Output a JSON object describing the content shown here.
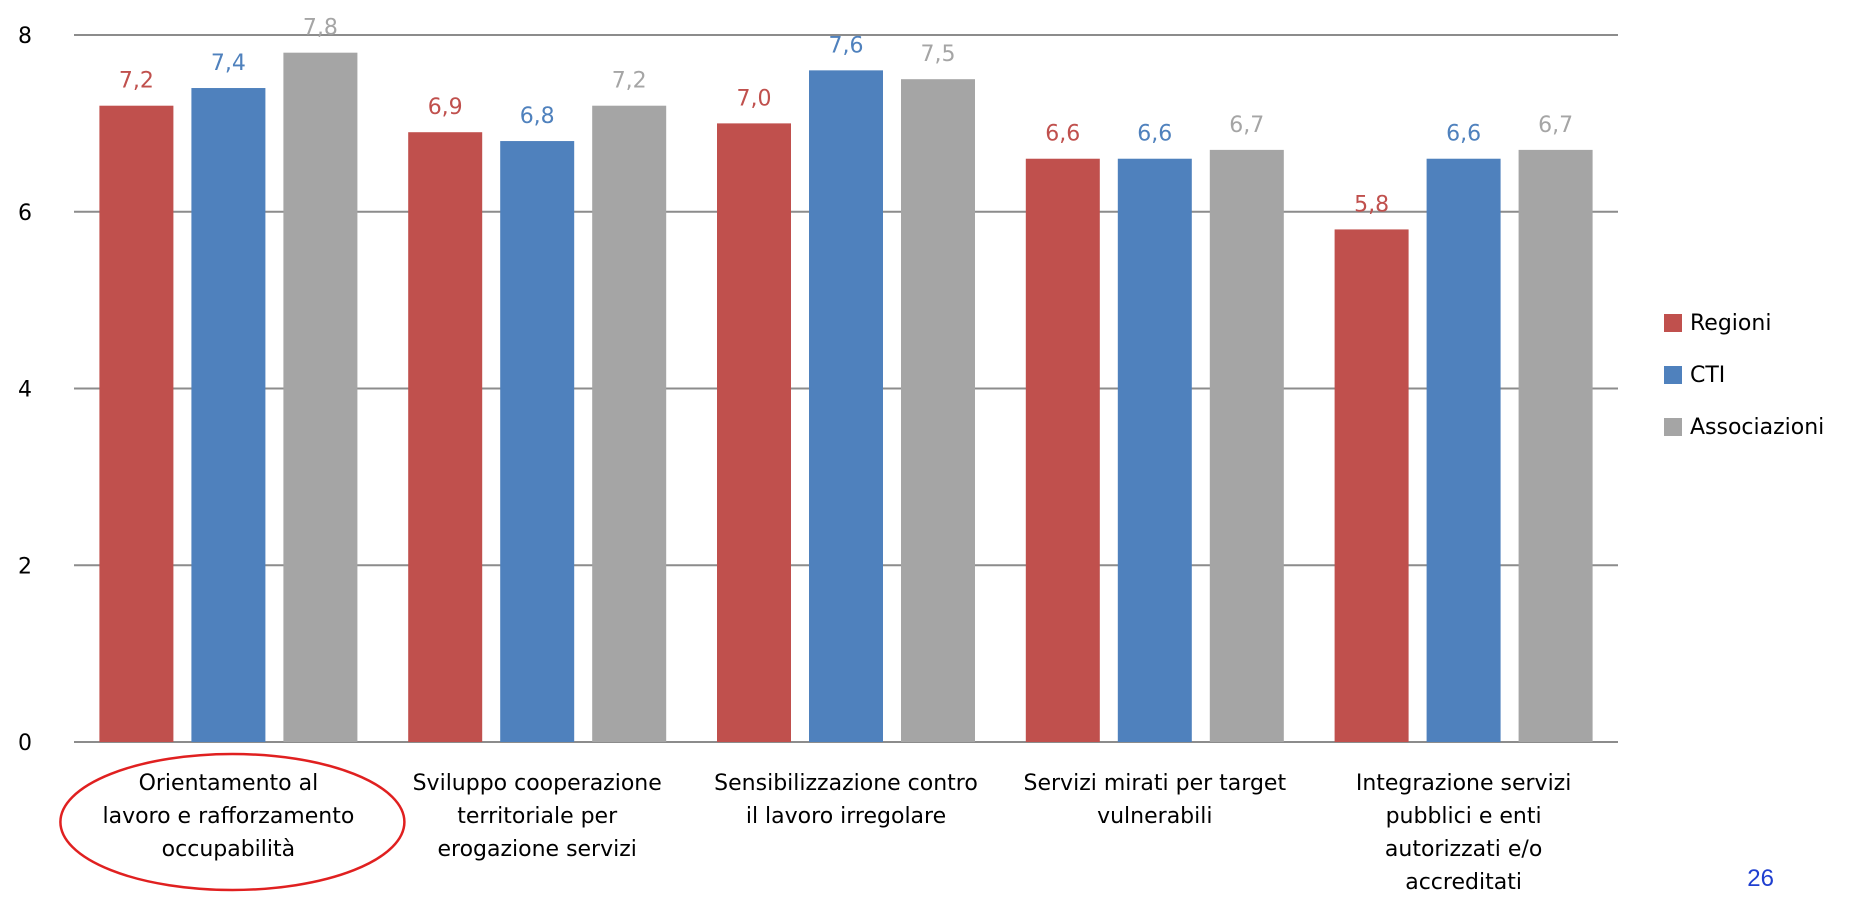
{
  "chart_data": {
    "type": "bar",
    "categories": [
      [
        "Orientamento al",
        "lavoro e rafforzamento",
        "occupabilità"
      ],
      [
        "Sviluppo cooperazione",
        "territoriale per",
        "erogazione servizi"
      ],
      [
        "Sensibilizzazione contro",
        "il lavoro irregolare"
      ],
      [
        "Servizi mirati per target",
        "vulnerabili"
      ],
      [
        "Integrazione servizi",
        "pubblici e enti",
        "autorizzati e/o",
        "accreditati"
      ]
    ],
    "series": [
      {
        "name": "Regioni",
        "color": "#c0504d",
        "values": [
          7.2,
          6.9,
          7.0,
          6.6,
          5.8
        ],
        "labels": [
          "7,2",
          "6,9",
          "7,0",
          "6,6",
          "5,8"
        ]
      },
      {
        "name": "CTI",
        "color": "#4f81bd",
        "values": [
          7.4,
          6.8,
          7.6,
          6.6,
          6.6
        ],
        "labels": [
          "7,4",
          "6,8",
          "7,6",
          "6,6",
          "6,6"
        ]
      },
      {
        "name": "Associazioni",
        "color": "#a5a5a5",
        "values": [
          7.8,
          7.2,
          7.5,
          6.7,
          6.7
        ],
        "labels": [
          "7,8",
          "7,2",
          "7,5",
          "6,7",
          "6,7"
        ]
      }
    ],
    "ylim": [
      0,
      8
    ],
    "yticks": [
      0,
      2,
      4,
      6,
      8
    ],
    "grid": true,
    "legend": "right",
    "highlighted_category": 0,
    "highlight_color": "#e02020"
  },
  "page_number": "26"
}
